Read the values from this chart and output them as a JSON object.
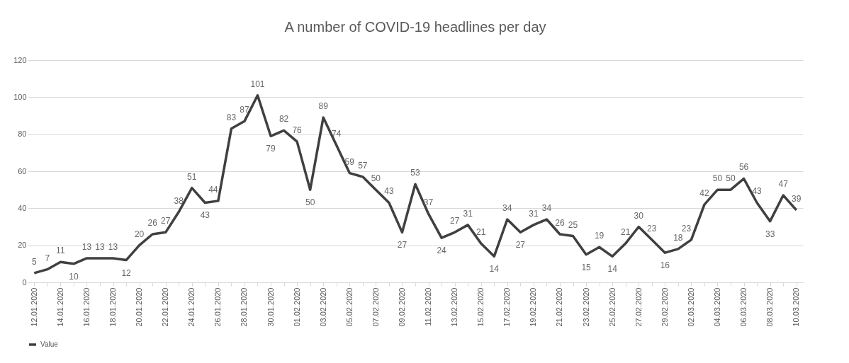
{
  "chart_data": {
    "type": "line",
    "title": "A number of COVID-19 headlines per day",
    "categories": [
      "12.01.2020",
      null,
      "14.01.2020",
      null,
      "16.01.2020",
      null,
      "18.01.2020",
      null,
      "20.01.2020",
      null,
      "22.01.2020",
      null,
      "24.01.2020",
      null,
      "26.01.2020",
      null,
      "28.01.2020",
      null,
      "30.01.2020",
      null,
      "01.02.2020",
      null,
      "03.02.2020",
      null,
      "05.02.2020",
      null,
      "07.02.2020",
      null,
      "09.02.2020",
      null,
      "11.02.2020",
      null,
      "13.02.2020",
      null,
      "15.02.2020",
      null,
      "17.02.2020",
      null,
      "19.02.2020",
      null,
      "21.02.2020",
      null,
      "23.02.2020",
      null,
      "25.02.2020",
      null,
      "27.02.2020",
      null,
      "29.02.2020",
      null,
      "02.03.2020",
      null,
      "04.03.2020",
      null,
      "06.03.2020",
      null,
      "08.03.2020",
      null,
      "10.03.2020"
    ],
    "series": [
      {
        "name": "Value",
        "color": "#404040",
        "values": [
          5,
          7,
          11,
          10,
          13,
          13,
          13,
          12,
          20,
          26,
          27,
          38,
          51,
          43,
          44,
          83,
          87,
          101,
          79,
          82,
          76,
          50,
          89,
          74,
          59,
          57,
          50,
          43,
          27,
          53,
          37,
          24,
          27,
          31,
          21,
          14,
          34,
          27,
          31,
          34,
          26,
          25,
          15,
          19,
          14,
          21,
          30,
          23,
          16,
          18,
          23,
          42,
          50,
          50,
          56,
          43,
          33,
          47,
          39
        ]
      }
    ],
    "ylim": [
      0,
      120
    ],
    "yticks": [
      0,
      20,
      40,
      60,
      80,
      100,
      120
    ],
    "grid": "y",
    "legend": "bottom",
    "data_labels": true,
    "marker": "none",
    "line_style": "solid"
  }
}
